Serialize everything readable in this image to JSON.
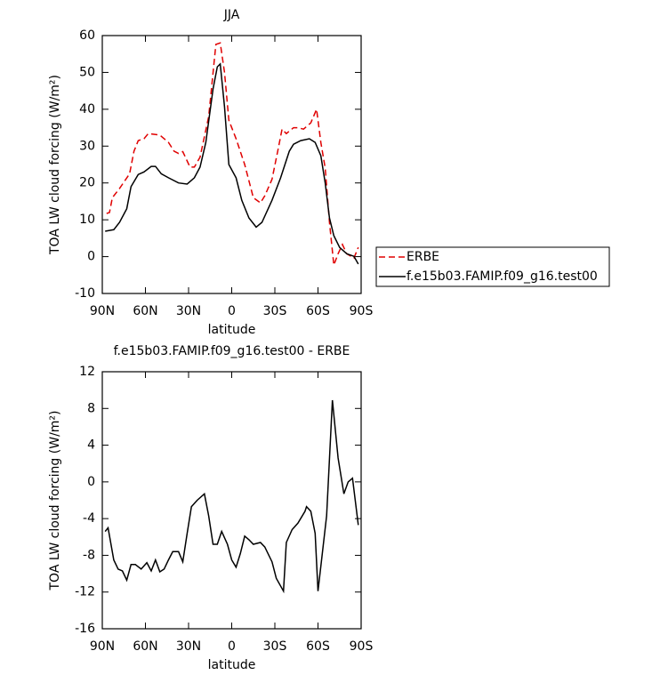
{
  "chart_data": [
    {
      "type": "line",
      "title": "JJA",
      "xlabel": "latitude",
      "ylabel": "TOA LW cloud forcing (W/m²)",
      "xlim": [
        90,
        -90
      ],
      "xticks": [
        {
          "value": 90,
          "label": "90N"
        },
        {
          "value": 60,
          "label": "60N"
        },
        {
          "value": 30,
          "label": "30N"
        },
        0,
        {
          "value": -30,
          "label": "30S"
        },
        {
          "value": -60,
          "label": "60S"
        },
        {
          "value": -90,
          "label": "90S"
        }
      ],
      "ylim": [
        -10,
        60
      ],
      "yticks": [
        -10,
        0,
        10,
        20,
        30,
        40,
        50,
        60
      ],
      "legend": "right",
      "series": [
        {
          "name": "ERBE",
          "color": "#e00000",
          "dashed": true,
          "x": [
            87,
            85,
            83,
            78,
            71,
            68,
            65,
            61,
            58,
            50,
            44,
            40,
            37,
            34,
            29,
            26,
            22,
            16,
            11,
            8,
            5,
            2,
            -3,
            -9,
            -15,
            -20,
            -23,
            -28,
            -32,
            -35,
            -38,
            -43,
            -46,
            -50,
            -55,
            -59,
            -62,
            -65,
            -68,
            -71,
            -74,
            -77,
            -80,
            -85,
            -88
          ],
          "values": [
            11.7,
            12,
            16,
            18.5,
            22.5,
            28.6,
            31.5,
            32,
            33.4,
            33,
            31,
            28.6,
            28,
            28.5,
            24.3,
            24.3,
            27,
            38,
            57.6,
            58,
            50,
            37,
            32,
            25,
            16,
            14.6,
            16.5,
            21,
            28.6,
            34.6,
            33.4,
            35,
            35,
            34.6,
            36.3,
            40,
            31,
            24,
            9.3,
            -2.3,
            0.8,
            3.3,
            0.8,
            -0.4,
            2.5
          ]
        },
        {
          "name": "f.e15b03.FAMIP.f09_g16.test00",
          "color": "#000000",
          "dashed": false,
          "x": [
            88,
            82,
            78,
            73,
            70,
            65,
            61,
            56,
            53,
            49,
            44,
            37,
            31,
            26,
            22,
            18,
            13,
            10,
            8,
            5,
            2,
            -3,
            -7,
            -12,
            -17,
            -21,
            -28,
            -34,
            -40,
            -43,
            -48,
            -54,
            -58,
            -62,
            -65,
            -68,
            -71,
            -75,
            -80,
            -85,
            -88
          ],
          "values": [
            6.9,
            7.3,
            9.3,
            13,
            19,
            22.3,
            23,
            24.5,
            24.5,
            22.5,
            21.4,
            20,
            19.7,
            21.4,
            24.3,
            31,
            45.5,
            51.5,
            52.3,
            40.7,
            25,
            21.4,
            15.3,
            10.5,
            8,
            9.3,
            15.3,
            21.4,
            28.6,
            30.5,
            31.5,
            32,
            31,
            27.4,
            20,
            10.5,
            5.7,
            2.5,
            0.8,
            0.1,
            -2
          ]
        }
      ]
    },
    {
      "type": "line",
      "title": "f.e15b03.FAMIP.f09_g16.test00 - ERBE",
      "xlabel": "latitude",
      "ylabel": "TOA LW cloud forcing (W/m²)",
      "xlim": [
        90,
        -90
      ],
      "xticks": [
        {
          "value": 90,
          "label": "90N"
        },
        {
          "value": 60,
          "label": "60N"
        },
        {
          "value": 30,
          "label": "30N"
        },
        0,
        {
          "value": -30,
          "label": "30S"
        },
        {
          "value": -60,
          "label": "60S"
        },
        {
          "value": -90,
          "label": "90S"
        }
      ],
      "ylim": [
        -16,
        12
      ],
      "yticks": [
        -16,
        -12,
        -8,
        -4,
        0,
        4,
        8,
        12
      ],
      "series": [
        {
          "color": "#000000",
          "dashed": false,
          "x": [
            88,
            86,
            82,
            79,
            76,
            73,
            70,
            67,
            63,
            59,
            56,
            53,
            50,
            47,
            44,
            41,
            37,
            34,
            31,
            28,
            24,
            19,
            16,
            13,
            10,
            7,
            3,
            0,
            -3,
            -6,
            -9,
            -12,
            -15,
            -20,
            -23,
            -28,
            -31,
            -36,
            -38,
            -42,
            -46,
            -51,
            -52,
            -55,
            -58,
            -60,
            -66,
            -70,
            -74,
            -78,
            -81,
            -84,
            -88
          ],
          "values": [
            -5.4,
            -5,
            -8.5,
            -9.5,
            -9.7,
            -10.7,
            -9,
            -9,
            -9.5,
            -8.8,
            -9.7,
            -8.5,
            -9.8,
            -9.5,
            -8.5,
            -7.6,
            -7.6,
            -8.7,
            -5.6,
            -2.7,
            -2,
            -1.3,
            -3.7,
            -6.8,
            -6.8,
            -5.4,
            -6.8,
            -8.5,
            -9.3,
            -7.8,
            -5.9,
            -6.3,
            -6.8,
            -6.6,
            -7.1,
            -8.7,
            -10.5,
            -11.9,
            -6.6,
            -5.2,
            -4.5,
            -3.2,
            -2.7,
            -3.2,
            -5.6,
            -11.9,
            -3.7,
            8.9,
            2.6,
            -1.3,
            0,
            0.4,
            -4.7
          ]
        }
      ]
    }
  ]
}
